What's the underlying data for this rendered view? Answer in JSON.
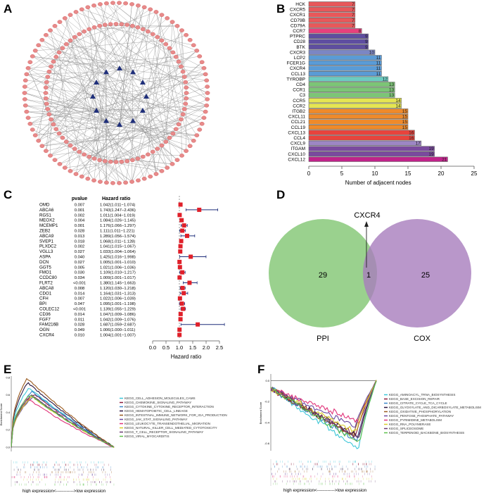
{
  "panel_labels": [
    "A",
    "B",
    "C",
    "D",
    "E",
    "F"
  ],
  "chart_data": [
    {
      "panel": "A",
      "type": "network",
      "description_nodes": {
        "outer_ring_color": "#e88a8a",
        "hub_color": "#1f2f7a"
      }
    },
    {
      "panel": "B",
      "type": "bar",
      "orientation": "horizontal",
      "xlabel": "Number of adjacent nodes",
      "xlim": [
        0,
        25
      ],
      "xticks": [
        0,
        5,
        10,
        15,
        20,
        25
      ],
      "categories": [
        "HCK",
        "CXCR5",
        "CXCR1",
        "CD79B",
        "CD79A",
        "CCR7",
        "PTPRC",
        "CD28",
        "BTK",
        "CXCR3",
        "LCP2",
        "FCER1G",
        "CXCR4",
        "CCL13",
        "TYROBP",
        "CD4",
        "CCR1",
        "C3",
        "CCR5",
        "CCR2",
        "ITGB2",
        "CXCL11",
        "CCL21",
        "CCL19",
        "CXCL13",
        "CCL4",
        "CXCL9",
        "ITGAM",
        "CXCL10",
        "CXCL12"
      ],
      "values": [
        7,
        7,
        7,
        7,
        7,
        8,
        9,
        9,
        9,
        10,
        11,
        11,
        11,
        11,
        12,
        13,
        13,
        13,
        14,
        14,
        15,
        15,
        15,
        15,
        16,
        16,
        17,
        19,
        19,
        21
      ],
      "colors": [
        "#e8585a",
        "#e8585a",
        "#e8585a",
        "#e8585a",
        "#e8585a",
        "#e8407c",
        "#5e4ea0",
        "#5e4ea0",
        "#5e4ea0",
        "#7b86c4",
        "#5a9bd6",
        "#5a9bd6",
        "#5a9bd6",
        "#5a9bd6",
        "#6ccbc0",
        "#7cc576",
        "#7cc576",
        "#7cc576",
        "#e5e552",
        "#e5e552",
        "#ef8a2a",
        "#ef8a2a",
        "#ef8a2a",
        "#ef8a2a",
        "#e8433c",
        "#e8433c",
        "#9d86c4",
        "#7a4a9e",
        "#7a4a9e",
        "#c0238a"
      ]
    },
    {
      "panel": "C",
      "type": "forest",
      "col_pvalue": "pvalue",
      "col_hr": "Hazard ratio",
      "xlabel": "Hazard ratio",
      "xlim": [
        0,
        2.5
      ],
      "xticks": [
        "0.0",
        "0.5",
        "1.0",
        "1.5",
        "2.0",
        "2.5"
      ],
      "rows": [
        {
          "gene": "OMD",
          "p": "0.007",
          "hr_text": "1.042(1.011−1.074)",
          "hr": 1.042,
          "lo": 1.011,
          "hi": 1.074
        },
        {
          "gene": "ABCA6",
          "p": "0.001",
          "hr_text": "1.743(1.247−2.436)",
          "hr": 1.743,
          "lo": 1.247,
          "hi": 2.436
        },
        {
          "gene": "RGS1",
          "p": "0.002",
          "hr_text": "1.011(1.004−1.019)",
          "hr": 1.011,
          "lo": 1.004,
          "hi": 1.019
        },
        {
          "gene": "MEOX2",
          "p": "0.004",
          "hr_text": "1.084(1.026−1.145)",
          "hr": 1.084,
          "lo": 1.026,
          "hi": 1.145
        },
        {
          "gene": "MCEMP1",
          "p": "0.001",
          "hr_text": "1.176(1.066−1.297)",
          "hr": 1.176,
          "lo": 1.066,
          "hi": 1.297
        },
        {
          "gene": "ZEB2",
          "p": "0.028",
          "hr_text": "1.111(1.011−1.221)",
          "hr": 1.111,
          "lo": 1.011,
          "hi": 1.221
        },
        {
          "gene": "ABCA9",
          "p": "0.013",
          "hr_text": "1.289(1.056−1.574)",
          "hr": 1.289,
          "lo": 1.056,
          "hi": 1.574
        },
        {
          "gene": "SVEP1",
          "p": "0.018",
          "hr_text": "1.068(1.011−1.128)",
          "hr": 1.068,
          "lo": 1.011,
          "hi": 1.128
        },
        {
          "gene": "PLXDC2",
          "p": "0.002",
          "hr_text": "1.041(1.015−1.067)",
          "hr": 1.041,
          "lo": 1.015,
          "hi": 1.067
        },
        {
          "gene": "VGLL3",
          "p": "0.027",
          "hr_text": "1.033(1.004−1.064)",
          "hr": 1.033,
          "lo": 1.004,
          "hi": 1.064
        },
        {
          "gene": "ASPA",
          "p": "0.040",
          "hr_text": "1.425(1.016−1.998)",
          "hr": 1.425,
          "lo": 1.016,
          "hi": 1.998
        },
        {
          "gene": "DCN",
          "p": "0.027",
          "hr_text": "1.005(1.001−1.010)",
          "hr": 1.005,
          "lo": 1.001,
          "hi": 1.01
        },
        {
          "gene": "GGT5",
          "p": "0.005",
          "hr_text": "1.021(1.006−1.036)",
          "hr": 1.021,
          "lo": 1.006,
          "hi": 1.036
        },
        {
          "gene": "FMO1",
          "p": "0.030",
          "hr_text": "1.109(1.010−1.217)",
          "hr": 1.109,
          "lo": 1.01,
          "hi": 1.217
        },
        {
          "gene": "CCDC80",
          "p": "0.034",
          "hr_text": "1.009(1.001−1.017)",
          "hr": 1.009,
          "lo": 1.001,
          "hi": 1.017
        },
        {
          "gene": "FLRT2",
          "p": "<0.001",
          "hr_text": "1.380(1.145−1.663)",
          "hr": 1.38,
          "lo": 1.145,
          "hi": 1.663
        },
        {
          "gene": "ABCA8",
          "p": "0.008",
          "hr_text": "1.120(1.030−1.218)",
          "hr": 1.12,
          "lo": 1.03,
          "hi": 1.218
        },
        {
          "gene": "CDO1",
          "p": "0.014",
          "hr_text": "1.164(1.031−1.313)",
          "hr": 1.164,
          "lo": 1.031,
          "hi": 1.313
        },
        {
          "gene": "CFH",
          "p": "0.007",
          "hr_text": "1.022(1.006−1.039)",
          "hr": 1.022,
          "lo": 1.006,
          "hi": 1.039
        },
        {
          "gene": "BPI",
          "p": "0.047",
          "hr_text": "1.095(1.001−1.198)",
          "hr": 1.095,
          "lo": 1.001,
          "hi": 1.198
        },
        {
          "gene": "COLEC12",
          "p": "<0.001",
          "hr_text": "1.139(1.055−1.229)",
          "hr": 1.139,
          "lo": 1.055,
          "hi": 1.229
        },
        {
          "gene": "CD36",
          "p": "0.014",
          "hr_text": "1.047(1.009−1.086)",
          "hr": 1.047,
          "lo": 1.009,
          "hi": 1.086
        },
        {
          "gene": "FGF7",
          "p": "0.011",
          "hr_text": "1.042(1.009−1.076)",
          "hr": 1.042,
          "lo": 1.009,
          "hi": 1.076
        },
        {
          "gene": "FAM216B",
          "p": "0.028",
          "hr_text": "1.687(1.059−2.687)",
          "hr": 1.687,
          "lo": 1.059,
          "hi": 2.687
        },
        {
          "gene": "OGN",
          "p": "0.049",
          "hr_text": "1.006(1.000−1.011)",
          "hr": 1.006,
          "lo": 1.0,
          "hi": 1.011
        },
        {
          "gene": "CXCR4",
          "p": "0.010",
          "hr_text": "1.004(1.001−1.007)",
          "hr": 1.004,
          "lo": 1.001,
          "hi": 1.007
        }
      ]
    },
    {
      "panel": "D",
      "type": "venn",
      "sets": [
        {
          "name": "PPI",
          "only": "29",
          "color": "#8fcc82"
        },
        {
          "name": "COX",
          "only": "25",
          "color": "#a77dbd"
        }
      ],
      "intersection": "1",
      "annotation": "CXCR4"
    },
    {
      "panel": "E",
      "type": "line",
      "ylabel": "Enrichment Score",
      "yticks": [
        "0.0",
        "0.2",
        "0.4",
        "0.6",
        "0.8"
      ],
      "ylim": [
        -0.05,
        0.8
      ],
      "xlabel": "high expression<------------>low expression",
      "series": [
        {
          "name": "KEGG_CELL_ADHESION_MOLECULES_CAMS",
          "color": "#3cc6d8",
          "peak": 0.68
        },
        {
          "name": "KEGG_CHEMOKINE_SIGNALING_PATHWAY",
          "color": "#8b1a3a",
          "peak": 0.61
        },
        {
          "name": "KEGG_CYTOKINE_CYTOKINE_RECEPTOR_INTERACTION",
          "color": "#3a86c8",
          "peak": 0.64
        },
        {
          "name": "KEGG_HEMATOPOIETIC_CELL_LINEAGE",
          "color": "#2a1540",
          "peak": 0.74
        },
        {
          "name": "KEGG_INTESTINAL_IMMUNE_NETWORK_FOR_IGA_PRODUCTION",
          "color": "#9a5a1e",
          "peak": 0.79
        },
        {
          "name": "KEGG_JAK_STAT_SIGNALING_PATHWAY",
          "color": "#6a4aa0",
          "peak": 0.58
        },
        {
          "name": "KEGG_LEUKOCYTE_TRANSENDOTHELIAL_MIGRATION",
          "color": "#e0337a",
          "peak": 0.56
        },
        {
          "name": "KEGG_NATURAL_KILLER_CELL_MEDIATED_CYTOTOXICITY",
          "color": "#d8cc28",
          "peak": 0.58
        },
        {
          "name": "KEGG_T_CELL_RECEPTOR_SIGNALING_PATHWAY",
          "color": "#6a3a70",
          "peak": 0.6
        },
        {
          "name": "KEGG_VIRAL_MYOCARDITIS",
          "color": "#5cc04a",
          "peak": 0.6
        }
      ]
    },
    {
      "panel": "F",
      "type": "line",
      "ylabel": "Enrichment Score",
      "yticks": [
        "0.0",
        "-0.2",
        "-0.4",
        "-0.6"
      ],
      "ylim": [
        -0.67,
        0.05
      ],
      "xlabel": "high expression<------------>low expression",
      "series": [
        {
          "name": "KEGG_AMINOACYL_TRNA_BIOSYNTHESIS",
          "color": "#3cc6d8",
          "trough": -0.66
        },
        {
          "name": "KEGG_BASE_EXCISION_REPAIR",
          "color": "#8b1a3a",
          "trough": -0.53
        },
        {
          "name": "KEGG_CITRATE_CYCLE_TCA_CYCLE",
          "color": "#3a86c8",
          "trough": -0.58
        },
        {
          "name": "KEGG_GLYOXYLATE_AND_DICARBOXYLATE_METABOLISM",
          "color": "#2a1540",
          "trough": -0.55
        },
        {
          "name": "KEGG_OXIDATIVE_PHOSPHORYLATION",
          "color": "#9a5a1e",
          "trough": -0.53
        },
        {
          "name": "KEGG_PENTOSE_PHOSPHATE_PATHWAY",
          "color": "#6a4aa0",
          "trough": -0.44
        },
        {
          "name": "KEGG_PYRIMIDINE_METABOLISM",
          "color": "#e0337a",
          "trough": -0.4
        },
        {
          "name": "KEGG_RNA_POLYMERASE",
          "color": "#d8cc28",
          "trough": -0.5
        },
        {
          "name": "KEGG_SPLICEOSOME",
          "color": "#6a3a70",
          "trough": -0.55
        },
        {
          "name": "KEGG_TERPENOID_BACKBONE_BIOSYNTHESIS",
          "color": "#5cc04a",
          "trough": -0.6
        }
      ]
    }
  ]
}
